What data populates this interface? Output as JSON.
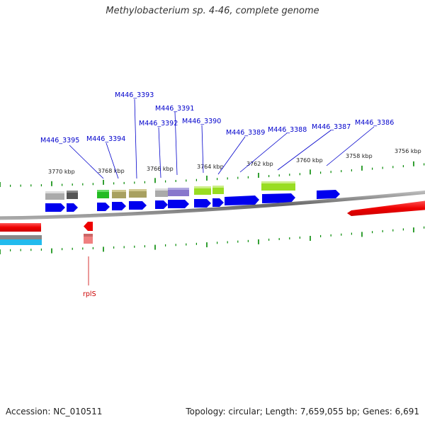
{
  "title": "Methylobacterium sp. 4-46, complete genome",
  "footer": {
    "accession": "Accession: NC_010511",
    "summary": "Topology: circular; Length: 7,659,055 bp; Genes: 6,691"
  },
  "colors": {
    "label_blue": "#0000cc",
    "label_red": "#cc0000",
    "cds_blue": "#0000ee",
    "tick_green": "#008800",
    "backbone": "#888888"
  },
  "kbp_labels": [
    "3770 kbp",
    "3768 kbp",
    "3766 kbp",
    "3764 kbp",
    "3762 kbp",
    "3760 kbp",
    "3758 kbp",
    "3756 kbp"
  ],
  "gene_labels": [
    {
      "name": "M446_3395",
      "color": "blue"
    },
    {
      "name": "M446_3394",
      "color": "blue"
    },
    {
      "name": "M446_3393",
      "color": "blue"
    },
    {
      "name": "M446_3392",
      "color": "blue"
    },
    {
      "name": "M446_3391",
      "color": "blue"
    },
    {
      "name": "M446_3390",
      "color": "blue"
    },
    {
      "name": "M446_3389",
      "color": "blue"
    },
    {
      "name": "M446_3388",
      "color": "blue"
    },
    {
      "name": "M446_3387",
      "color": "blue"
    },
    {
      "name": "M446_3386",
      "color": "blue"
    },
    {
      "name": "rplS",
      "color": "red"
    }
  ]
}
